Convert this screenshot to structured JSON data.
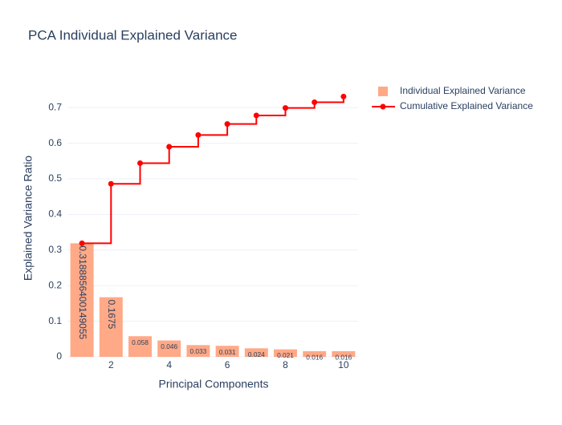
{
  "chart_data": {
    "type": "bar",
    "title": "PCA Individual Explained Variance",
    "x_label": "Principal Components",
    "y_label": "Explained Variance Ratio",
    "x": [
      1,
      2,
      3,
      4,
      5,
      6,
      7,
      8,
      9,
      10
    ],
    "series": [
      {
        "name": "Individual Explained Variance",
        "type": "bar",
        "color": "#ffa07a",
        "values": [
          0.3188856400149055,
          0.1675,
          0.058,
          0.046,
          0.033,
          0.031,
          0.024,
          0.021,
          0.016,
          0.016
        ]
      },
      {
        "name": "Cumulative Explained Variance",
        "type": "line",
        "color": "#ff0000",
        "values": [
          0.319,
          0.486,
          0.544,
          0.59,
          0.623,
          0.654,
          0.678,
          0.699,
          0.715,
          0.731
        ]
      }
    ],
    "xlim": [
      0.5,
      10.5
    ],
    "xticks": [
      2,
      4,
      6,
      8,
      10
    ],
    "ylim": [
      0,
      0.768
    ],
    "yticks": [
      0,
      0.1,
      0.2,
      0.3,
      0.4,
      0.5,
      0.6,
      0.7
    ],
    "grid": true,
    "legend": "top-right"
  }
}
